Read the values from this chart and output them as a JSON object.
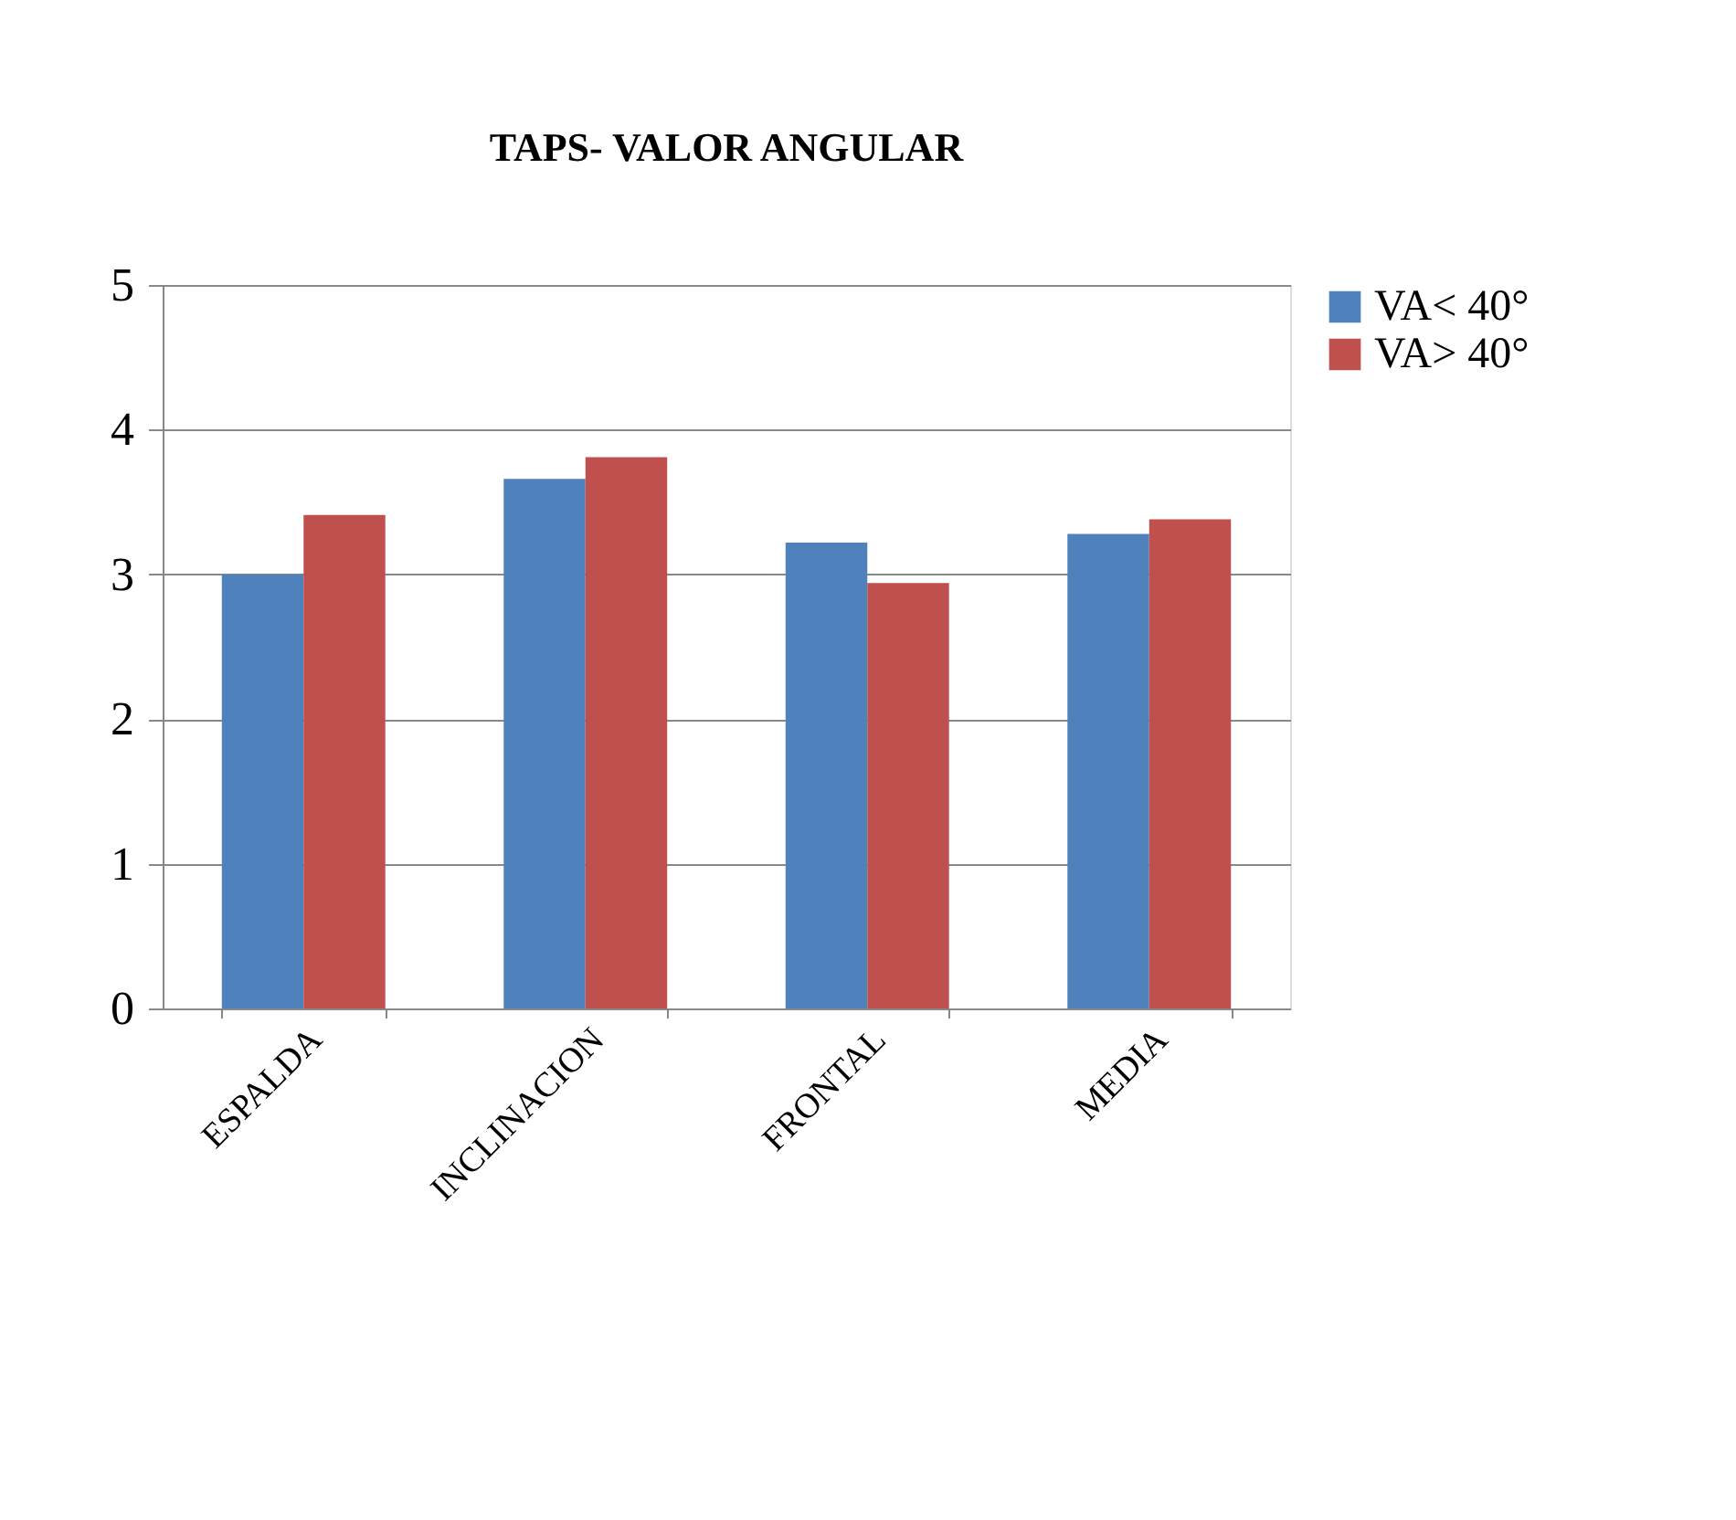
{
  "chart_data": {
    "type": "bar",
    "title": "TAPS- VALOR ANGULAR",
    "categories": [
      "ESPALDA",
      "INCLINACION",
      "FRONTAL",
      "MEDIA"
    ],
    "series": [
      {
        "name": "VA< 40°",
        "color": "#4f81bd",
        "values": [
          3.0,
          3.66,
          3.22,
          3.28
        ]
      },
      {
        "name": "VA> 40°",
        "color": "#c0504d",
        "values": [
          3.41,
          3.81,
          2.94,
          3.38
        ]
      }
    ],
    "ylim": [
      0,
      5
    ],
    "yticks": [
      0,
      1,
      2,
      3,
      4,
      5
    ],
    "grid": "y",
    "legend": "right"
  }
}
